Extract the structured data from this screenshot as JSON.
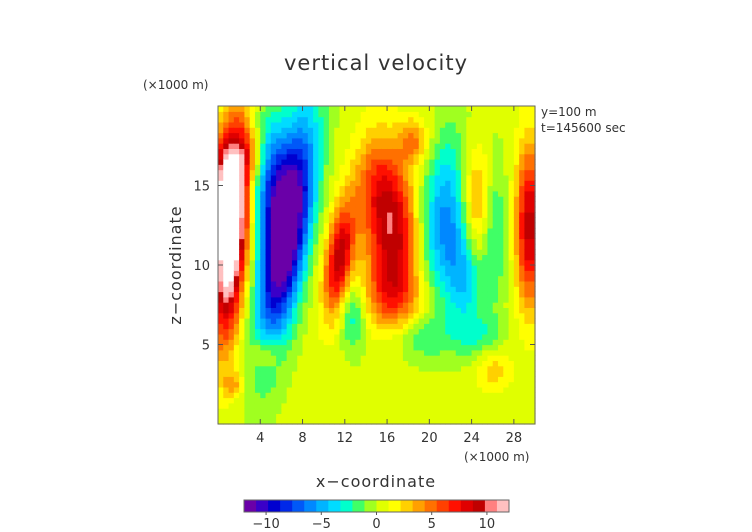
{
  "chart_data": {
    "type": "heatmap",
    "title": "vertical velocity",
    "xlabel": "x−coordinate",
    "ylabel": "z−coordinate",
    "x_unit_label": "(×1000 m)",
    "y_unit_label": "(×1000 m)",
    "annotations": [
      "y=100 m",
      "t=145600 sec"
    ],
    "xlim": [
      0,
      30
    ],
    "ylim": [
      0,
      20
    ],
    "x_ticks": [
      4,
      8,
      12,
      16,
      20,
      24,
      28
    ],
    "x_tick_labels": [
      "4",
      "8",
      "12",
      "16",
      "20",
      "24",
      "28"
    ],
    "y_ticks": [
      5,
      10,
      15
    ],
    "y_tick_labels": [
      "5",
      "10",
      "15"
    ],
    "colorbar": {
      "range": [
        -12,
        12
      ],
      "ticks": [
        -10,
        -5,
        0,
        5,
        10
      ],
      "tick_labels": [
        "−10",
        "−5",
        "0",
        "5",
        "10"
      ],
      "colors": [
        "#6a00a8",
        "#3a00c8",
        "#0000d0",
        "#0028e8",
        "#0058f8",
        "#0088ff",
        "#00b4ff",
        "#00dcff",
        "#00ffcc",
        "#40ff66",
        "#a0ff20",
        "#e0ff00",
        "#ffff00",
        "#ffd000",
        "#ffa000",
        "#ff7000",
        "#ff4000",
        "#ff1000",
        "#e00000",
        "#c00000",
        "#ff8080",
        "#ffc0c0"
      ]
    },
    "background_value": 0.4,
    "features": [
      {
        "x": 1.2,
        "z": 12.2,
        "sx": 1.1,
        "sz": 4.5,
        "amp": 16,
        "rot": 0.1
      },
      {
        "x": 0.5,
        "z": 15.5,
        "sx": 1.0,
        "sz": 2.0,
        "amp": 5,
        "rot": 0
      },
      {
        "x": 6.5,
        "z": 12.0,
        "sx": 1.4,
        "sz": 5.0,
        "amp": -14,
        "rot": 0.25
      },
      {
        "x": 5.0,
        "z": 15.5,
        "sx": 1.3,
        "sz": 3.0,
        "amp": -6,
        "rot": 0
      },
      {
        "x": 11.5,
        "z": 10.5,
        "sx": 0.9,
        "sz": 2.5,
        "amp": 9,
        "rot": 0.2
      },
      {
        "x": 12.8,
        "z": 7.0,
        "sx": 0.9,
        "sz": 1.6,
        "amp": -4,
        "rot": 0
      },
      {
        "x": 16.8,
        "z": 11.8,
        "sx": 1.6,
        "sz": 3.0,
        "amp": 8,
        "rot": 0
      },
      {
        "x": 15.0,
        "z": 15.0,
        "sx": 1.5,
        "sz": 2.5,
        "amp": 5,
        "rot": 0
      },
      {
        "x": 16.5,
        "z": 8.0,
        "sx": 2.5,
        "sz": 1.8,
        "amp": 4,
        "rot": 0
      },
      {
        "x": 18.5,
        "z": 17.8,
        "sx": 1.0,
        "sz": 1.0,
        "amp": 4,
        "rot": 0
      },
      {
        "x": 21.5,
        "z": 13.0,
        "sx": 1.8,
        "sz": 3.8,
        "amp": -6,
        "rot": 0.2
      },
      {
        "x": 23.5,
        "z": 9.5,
        "sx": 1.3,
        "sz": 2.5,
        "amp": -5,
        "rot": 0
      },
      {
        "x": 24.5,
        "z": 13.5,
        "sx": 1.2,
        "sz": 3.0,
        "amp": 6,
        "rot": 0
      },
      {
        "x": 26.0,
        "z": 12.5,
        "sx": 0.9,
        "sz": 3.2,
        "amp": -4,
        "rot": 0
      },
      {
        "x": 29.5,
        "z": 12.5,
        "sx": 0.9,
        "sz": 3.5,
        "amp": 9,
        "rot": 0
      },
      {
        "x": 3.0,
        "z": 17.0,
        "sx": 1.0,
        "sz": 1.0,
        "amp": 3,
        "rot": 0
      },
      {
        "x": 4.5,
        "z": 4.5,
        "sx": 1.0,
        "sz": 0.8,
        "amp": 3,
        "rot": 0
      },
      {
        "x": 19.0,
        "z": 5.5,
        "sx": 2.5,
        "sz": 1.0,
        "amp": -2.5,
        "rot": 0
      },
      {
        "x": 25.0,
        "z": 5.5,
        "sx": 1.5,
        "sz": 1.0,
        "amp": -2,
        "rot": 0
      },
      {
        "x": 26.0,
        "z": 3.5,
        "sx": 1.2,
        "sz": 1.0,
        "amp": 2.5,
        "rot": 0
      },
      {
        "x": 1.5,
        "z": 2.5,
        "sx": 0.7,
        "sz": 0.6,
        "amp": 3,
        "rot": 0
      }
    ]
  }
}
